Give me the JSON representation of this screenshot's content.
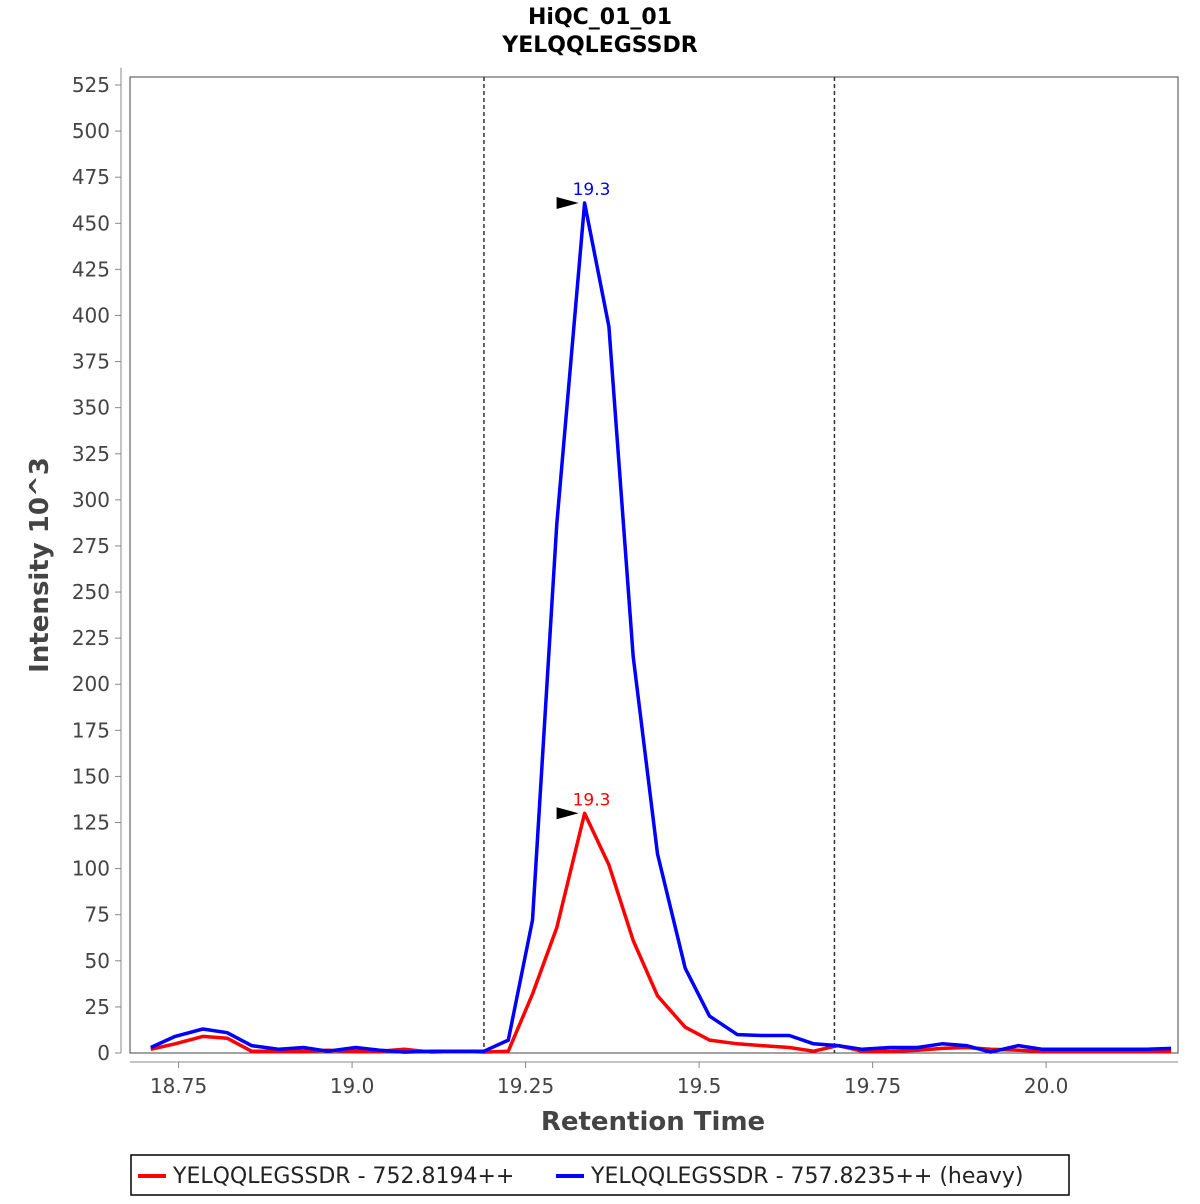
{
  "chart_data": {
    "type": "line",
    "title": [
      "HiQC_01_01",
      "YELQQLEGSSDR"
    ],
    "xlabel": "Retention Time",
    "ylabel": "Intensity 10^3",
    "xlim": [
      18.68,
      20.19
    ],
    "ylim": [
      0,
      530
    ],
    "xticks": [
      18.75,
      19.0,
      19.25,
      19.5,
      19.75,
      20.0
    ],
    "xtick_labels": [
      "18.75",
      "19.0",
      "19.25",
      "19.5",
      "19.75",
      "20.0"
    ],
    "yticks": [
      0,
      25,
      50,
      75,
      100,
      125,
      150,
      175,
      200,
      225,
      250,
      275,
      300,
      325,
      350,
      375,
      400,
      425,
      450,
      475,
      500,
      525
    ],
    "ytick_labels": [
      "0",
      "25",
      "50",
      "75",
      "100",
      "125",
      "150",
      "175",
      "200",
      "225",
      "250",
      "275",
      "300",
      "325",
      "350",
      "375",
      "400",
      "425",
      "450",
      "475",
      "500",
      "525"
    ],
    "vlines": [
      19.19,
      19.695
    ],
    "grid": false,
    "legend_position": "bottom",
    "series": [
      {
        "name": "YELQQLEGSSDR - 752.8194++",
        "color": "#ff0000",
        "peak_label": "19.3",
        "peak": {
          "x": 19.335,
          "y": 130
        },
        "x": [
          18.71,
          18.745,
          18.785,
          18.82,
          18.855,
          18.895,
          18.93,
          18.965,
          19.005,
          19.04,
          19.075,
          19.115,
          19.155,
          19.19,
          19.225,
          19.26,
          19.295,
          19.335,
          19.37,
          19.405,
          19.44,
          19.48,
          19.515,
          19.555,
          19.59,
          19.63,
          19.665,
          19.7,
          19.735,
          19.775,
          19.815,
          19.85,
          19.885,
          19.92,
          19.96,
          19.995,
          20.035,
          20.07,
          20.105,
          20.145,
          20.18
        ],
        "values": [
          2,
          5,
          9,
          8,
          1,
          1,
          1,
          1.5,
          1,
          1,
          2,
          0.5,
          1,
          0.5,
          1,
          32,
          68,
          130,
          102,
          61,
          31,
          14,
          7,
          5,
          4,
          3,
          1,
          4,
          1,
          1,
          1.5,
          2.5,
          3,
          2,
          1.5,
          1,
          1,
          1,
          1,
          1,
          1
        ]
      },
      {
        "name": "YELQQLEGSSDR - 757.8235++ (heavy)",
        "color": "#0000ff",
        "peak_label": "19.3",
        "peak": {
          "x": 19.335,
          "y": 461
        },
        "x": [
          18.71,
          18.745,
          18.785,
          18.82,
          18.855,
          18.895,
          18.93,
          18.965,
          19.005,
          19.04,
          19.075,
          19.115,
          19.155,
          19.19,
          19.225,
          19.26,
          19.295,
          19.335,
          19.37,
          19.405,
          19.44,
          19.48,
          19.515,
          19.555,
          19.59,
          19.63,
          19.665,
          19.7,
          19.735,
          19.775,
          19.815,
          19.85,
          19.885,
          19.92,
          19.96,
          19.995,
          20.035,
          20.07,
          20.105,
          20.145,
          20.18
        ],
        "values": [
          3,
          9,
          13,
          11,
          4,
          2,
          3,
          1,
          3,
          1.5,
          0.5,
          1,
          1,
          1,
          7,
          72,
          287,
          461,
          394,
          215,
          108,
          46,
          20,
          10,
          9.5,
          9.5,
          5,
          4,
          2,
          3,
          3,
          5,
          4,
          0.5,
          4,
          2,
          2,
          2,
          2,
          2,
          2.5
        ]
      }
    ]
  }
}
